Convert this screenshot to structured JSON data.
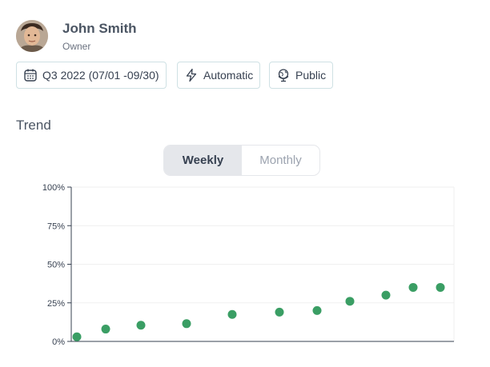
{
  "profile": {
    "name": "John Smith",
    "role": "Owner",
    "avatar_icon": "user-avatar-photo"
  },
  "chips": [
    {
      "label": "Q3 2022 (07/01 -09/30)",
      "icon": "calendar-icon"
    },
    {
      "label": "Automatic",
      "icon": "lightning-icon"
    },
    {
      "label": "Public",
      "icon": "globe-icon"
    }
  ],
  "trend": {
    "title": "Trend",
    "toggle": {
      "weekly": "Weekly",
      "monthly": "Monthly",
      "selected": "Weekly"
    }
  },
  "colors": {
    "point": "#3a9e64",
    "grid": "#efefef",
    "axis": "#374151",
    "chip_border": "#cfe1e4"
  },
  "chart_data": {
    "type": "scatter",
    "title": "",
    "xlabel": "",
    "ylabel": "",
    "ylim": [
      0,
      100
    ],
    "yticks": [
      "0%",
      "25%",
      "50%",
      "75%",
      "100%"
    ],
    "ytick_values": [
      0,
      25,
      50,
      75,
      100
    ],
    "series": [
      {
        "values": [
          3,
          8,
          10.5,
          11.5,
          17.5,
          19,
          20,
          26,
          30,
          35,
          35
        ]
      }
    ]
  }
}
